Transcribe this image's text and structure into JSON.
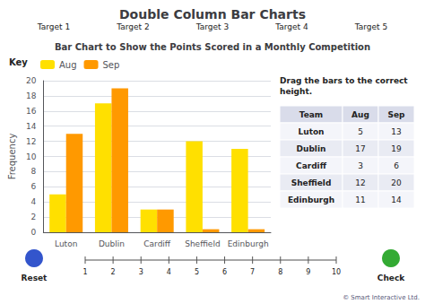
{
  "chart_data": {
    "type": "bar",
    "title": "Double Column Bar Charts",
    "subtitle": "Bar Chart to Show the Points Scored in a Monthly Competition",
    "categories": [
      "Luton",
      "Dublin",
      "Cardiff",
      "Sheffield",
      "Edinburgh"
    ],
    "series": [
      {
        "name": "Aug",
        "color": "#FFE000",
        "values": [
          5,
          17,
          3,
          12,
          11
        ]
      },
      {
        "name": "Sep",
        "color": "#FF9900",
        "values": [
          13,
          19,
          3,
          0.4,
          0.4
        ]
      }
    ],
    "ylabel": "Frequency",
    "ylim": [
      0,
      20
    ],
    "yticks": [
      0,
      2,
      4,
      6,
      8,
      10,
      12,
      14,
      16,
      18,
      20
    ],
    "grid": true,
    "legend": "upper left",
    "legend_title": "Key",
    "tabs": [
      "Target 1",
      "Target 2",
      "Target 3",
      "Target 4",
      "Target 5"
    ],
    "note": "Drag the bars to the correct\nheight.",
    "table": {
      "headers": [
        "Team",
        "Aug",
        "Sep"
      ],
      "rows": [
        [
          "Luton",
          "5",
          "13"
        ],
        [
          "Dublin",
          "17",
          "19"
        ],
        [
          "Cardiff",
          "3",
          "6"
        ],
        [
          "Sheffield",
          "12",
          "20"
        ],
        [
          "Edinburgh",
          "11",
          "14"
        ]
      ]
    },
    "slider": [
      1,
      2,
      3,
      4,
      5,
      6,
      7,
      8,
      9,
      10
    ],
    "buttons": [
      "Reset",
      "Check"
    ],
    "footer": "© Smart Interactive Ltd."
  }
}
